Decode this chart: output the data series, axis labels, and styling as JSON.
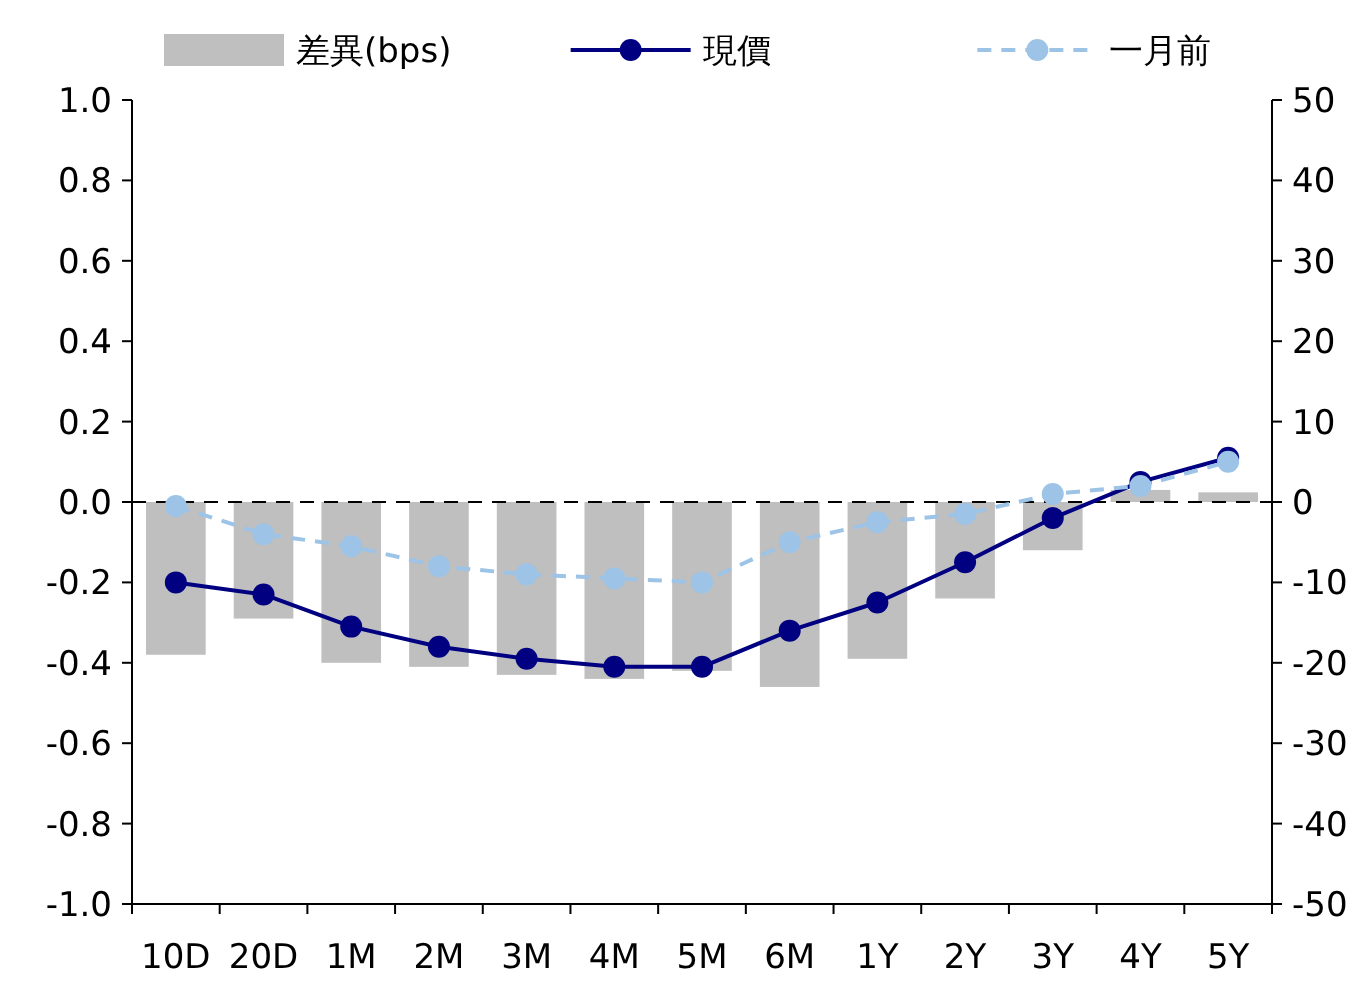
{
  "chart_data": {
    "type": "bar",
    "categories": [
      "10D",
      "20D",
      "1M",
      "2M",
      "3M",
      "4M",
      "5M",
      "6M",
      "1Y",
      "2Y",
      "3Y",
      "4Y",
      "5Y"
    ],
    "series": [
      {
        "name": "差異(bps)",
        "axis": "y2",
        "color": "#bfbfbf",
        "values": [
          -19,
          -14.5,
          -20,
          -20.5,
          -21.5,
          -22,
          -21,
          -23,
          -19.5,
          -12,
          -6,
          1.5,
          1.2
        ]
      },
      {
        "name": "現價",
        "type": "line",
        "color": "#000080",
        "marker": "circle",
        "line_style": "solid",
        "values": [
          -0.2,
          -0.23,
          -0.31,
          -0.36,
          -0.39,
          -0.41,
          -0.41,
          -0.32,
          -0.25,
          -0.15,
          -0.04,
          0.05,
          0.11
        ]
      },
      {
        "name": "一月前",
        "type": "line",
        "color": "#9dc3e6",
        "marker": "circle",
        "line_style": "dashed",
        "values": [
          -0.01,
          -0.08,
          -0.11,
          -0.16,
          -0.18,
          -0.19,
          -0.2,
          -0.1,
          -0.05,
          -0.03,
          0.02,
          0.04,
          0.1
        ]
      }
    ],
    "ylim": [
      -1,
      1
    ],
    "yticks": [
      {
        "value": -1,
        "label": "-1.0"
      },
      {
        "value": -0.8,
        "label": "-0.8"
      },
      {
        "value": -0.6,
        "label": "-0.6"
      },
      {
        "value": -0.4,
        "label": "-0.4"
      },
      {
        "value": -0.2,
        "label": "-0.2"
      },
      {
        "value": 0,
        "label": "0.0"
      },
      {
        "value": 0.2,
        "label": "0.2"
      },
      {
        "value": 0.4,
        "label": "0.4"
      },
      {
        "value": 0.6,
        "label": "0.6"
      },
      {
        "value": 0.8,
        "label": "0.8"
      },
      {
        "value": 1,
        "label": "1.0"
      }
    ],
    "y2lim": [
      -50,
      50
    ],
    "y2ticks": [
      -50,
      -40,
      -30,
      -20,
      -10,
      0,
      10,
      20,
      30,
      40,
      50
    ],
    "ref_lines": [
      {
        "axis": "y",
        "value": 0,
        "color": "#000000",
        "line_style": "dashed"
      }
    ],
    "legend": "top"
  }
}
